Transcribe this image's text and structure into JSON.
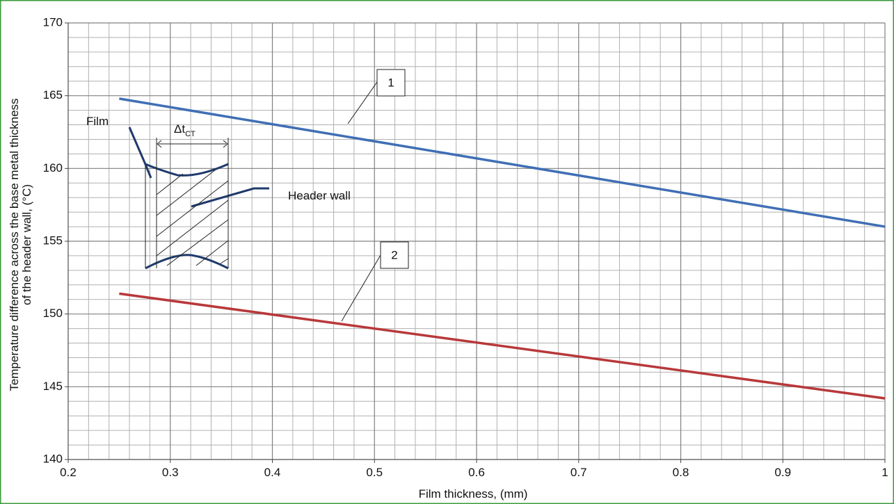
{
  "chart_data": {
    "type": "line",
    "x_label": "Film thickness, (mm)",
    "y_label": [
      "Temperature difference across the base metal thickness",
      "of the header wall, (°C)"
    ],
    "x": [
      0.25,
      1
    ],
    "series": [
      {
        "name": "1",
        "color": "#3f6fb5",
        "values": [
          164.8,
          156
        ]
      },
      {
        "name": "2",
        "color": "#b8383a",
        "values": [
          151.4,
          144.2
        ]
      }
    ],
    "xlim": [
      0.2,
      1
    ],
    "xticks": [
      0.2,
      0.3,
      0.4,
      0.5,
      0.6,
      0.7,
      0.8,
      0.9,
      1
    ],
    "ylim": [
      140,
      170
    ],
    "yticks": [
      140,
      145,
      150,
      155,
      160,
      165,
      170
    ],
    "grid": true,
    "minor_divisions": {
      "x": 5,
      "y": 5
    },
    "annotations": {
      "film": "Film",
      "header_wall": "Header wall",
      "delta": "Δt",
      "delta_sub": "CT"
    }
  }
}
